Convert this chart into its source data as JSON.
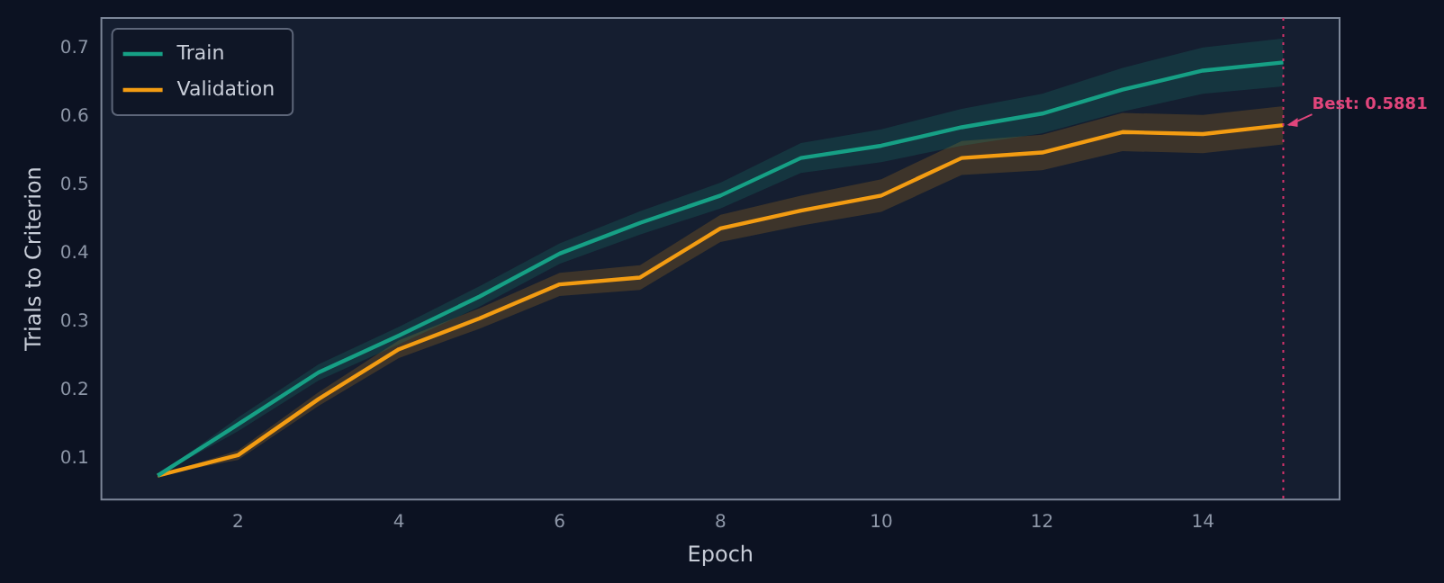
{
  "chart_data": {
    "type": "line",
    "xlabel": "Epoch",
    "ylabel": "Trials to Criterion",
    "x": [
      1,
      2,
      3,
      4,
      5,
      6,
      7,
      8,
      9,
      10,
      11,
      12,
      13,
      14,
      15
    ],
    "series": [
      {
        "name": "Train",
        "color": "#16a085",
        "values": [
          0.075,
          0.15,
          0.226,
          0.28,
          0.337,
          0.4,
          0.445,
          0.485,
          0.54,
          0.558,
          0.585,
          0.605,
          0.64,
          0.668,
          0.68
        ],
        "lower": [
          0.075,
          0.14,
          0.214,
          0.267,
          0.322,
          0.385,
          0.428,
          0.466,
          0.518,
          0.534,
          0.558,
          0.576,
          0.608,
          0.634,
          0.645
        ],
        "upper": [
          0.075,
          0.16,
          0.238,
          0.293,
          0.352,
          0.415,
          0.462,
          0.504,
          0.562,
          0.582,
          0.612,
          0.634,
          0.672,
          0.702,
          0.715
        ]
      },
      {
        "name": "Validation",
        "color": "#f39c12",
        "values": [
          0.075,
          0.105,
          0.187,
          0.26,
          0.305,
          0.355,
          0.365,
          0.437,
          0.463,
          0.485,
          0.54,
          0.548,
          0.578,
          0.575,
          0.5881
        ],
        "lower": [
          0.075,
          0.098,
          0.177,
          0.247,
          0.29,
          0.338,
          0.347,
          0.417,
          0.441,
          0.461,
          0.515,
          0.522,
          0.55,
          0.547,
          0.56
        ],
        "upper": [
          0.075,
          0.112,
          0.197,
          0.273,
          0.32,
          0.372,
          0.383,
          0.457,
          0.485,
          0.509,
          0.565,
          0.574,
          0.606,
          0.603,
          0.616
        ]
      }
    ],
    "xlim": [
      0.3,
      15.7
    ],
    "ylim": [
      0.04,
      0.745
    ],
    "xticks": [
      2,
      4,
      6,
      8,
      10,
      12,
      14
    ],
    "yticks": [
      0.1,
      0.2,
      0.3,
      0.4,
      0.5,
      0.6,
      0.7
    ],
    "ref_lines": [
      {
        "axis": "x",
        "value": 15,
        "color": "#d6336c",
        "line_style": "dotted"
      }
    ],
    "annotations": [
      {
        "text": "Best: 0.5881",
        "x": 15,
        "y": 0.5881
      }
    ],
    "legend": "top left",
    "grid": false,
    "marker": "none",
    "line_style": "solid"
  }
}
